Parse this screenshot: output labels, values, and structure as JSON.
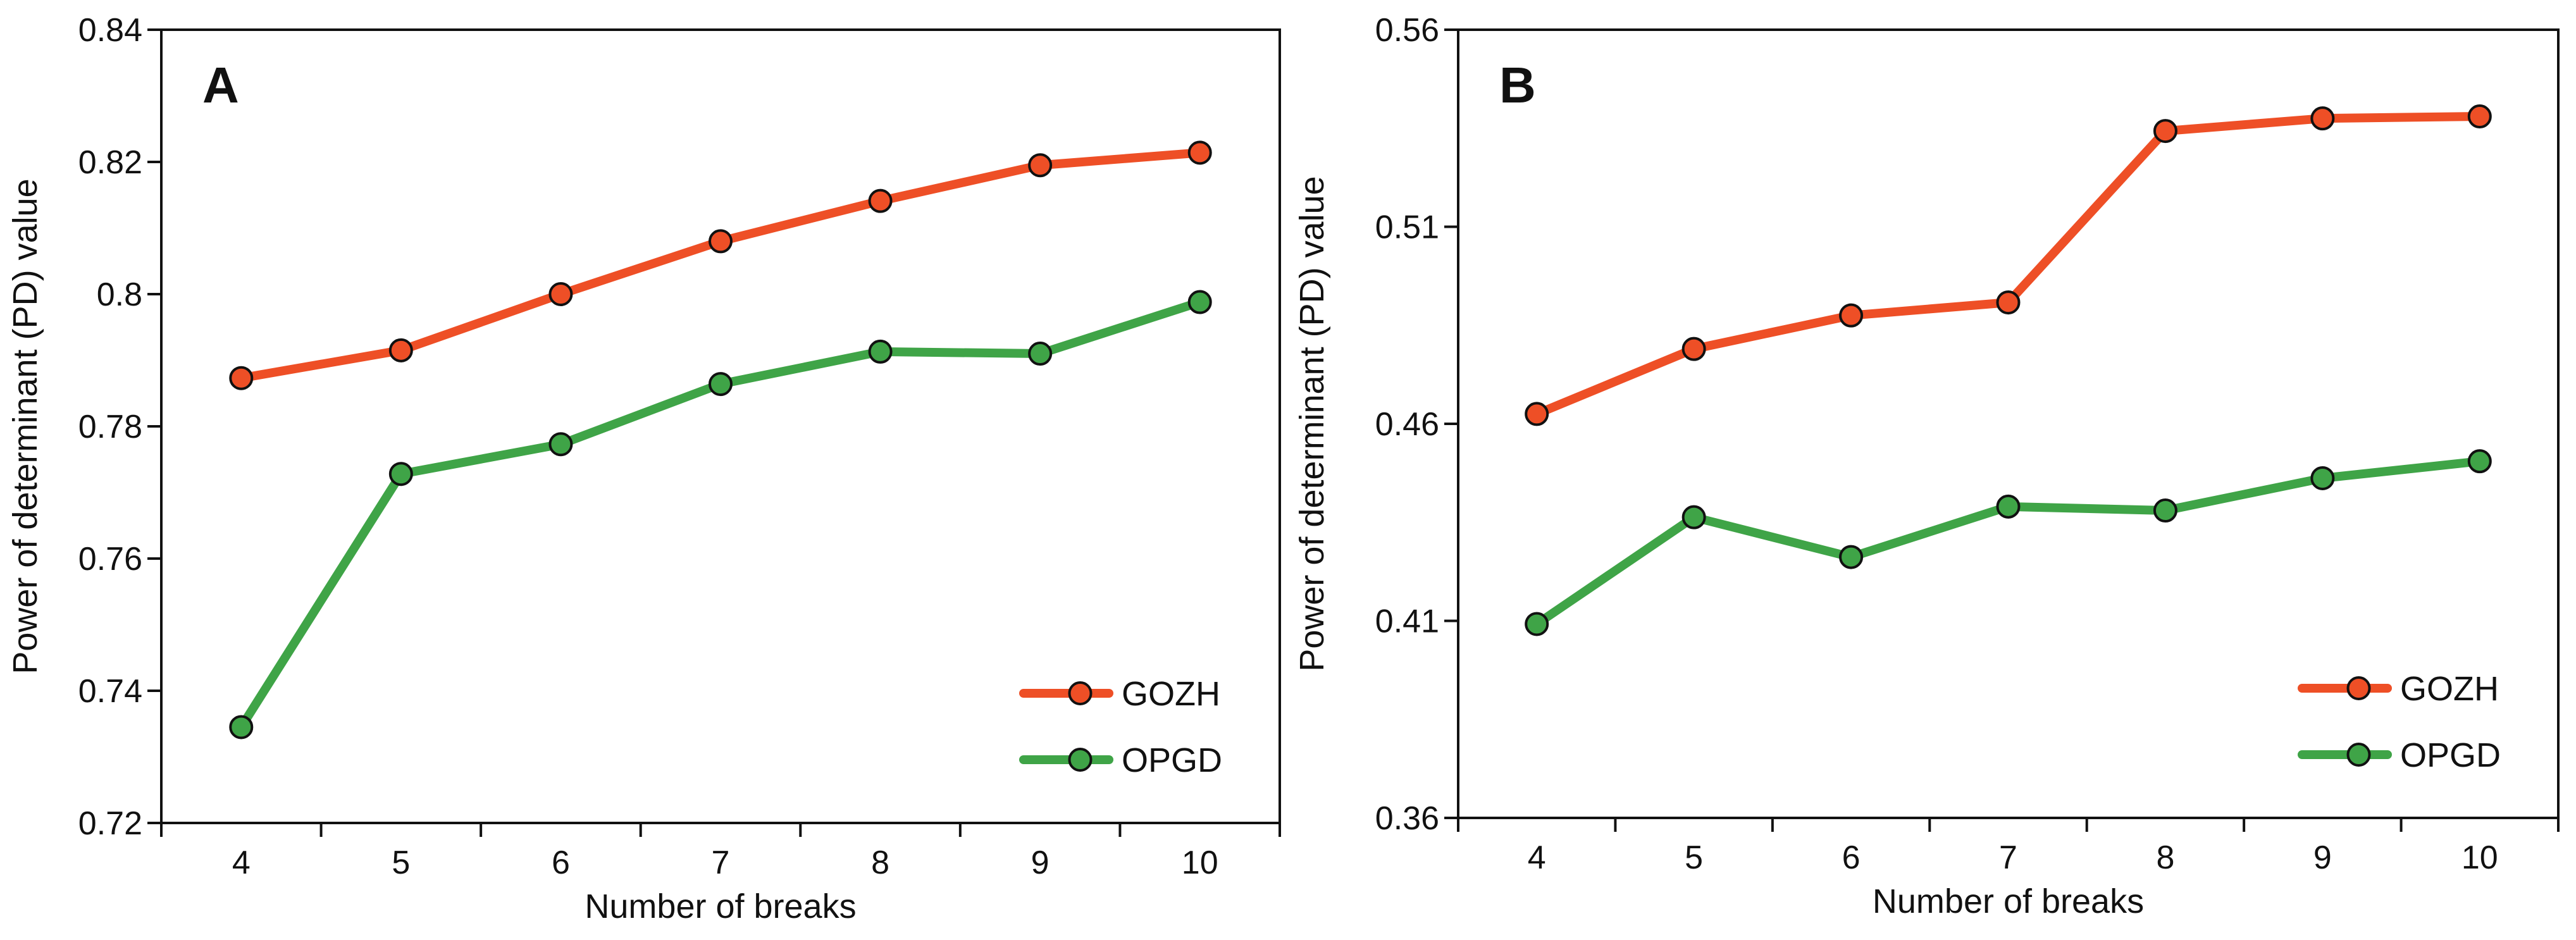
{
  "chart_data": [
    {
      "type": "line",
      "panel_label": "A",
      "x": [
        4,
        5,
        6,
        7,
        8,
        9,
        10
      ],
      "series": [
        {
          "name": "GOZH",
          "color": "#ee4f26",
          "values": [
            0.7873,
            0.7915,
            0.8,
            0.808,
            0.8141,
            0.8195,
            0.8214
          ]
        },
        {
          "name": "OPGD",
          "color": "#3fa447",
          "values": [
            0.7345,
            0.7728,
            0.7773,
            0.7864,
            0.7913,
            0.791,
            0.7988
          ]
        }
      ],
      "xlabel": "Number of breaks",
      "ylabel": "Power of determinant (PD) value",
      "xlim": [
        3.5,
        10.5
      ],
      "ylim": [
        0.72,
        0.84
      ],
      "x_ticks": [
        "4",
        "5",
        "6",
        "7",
        "8",
        "9",
        "10"
      ],
      "y_ticks": [
        "0.72",
        "0.74",
        "0.76",
        "0.78",
        "0.8",
        "0.82",
        "0.84"
      ],
      "grid": false,
      "legend_position": "bottom-right"
    },
    {
      "type": "line",
      "panel_label": "B",
      "x": [
        4,
        5,
        6,
        7,
        8,
        9,
        10
      ],
      "series": [
        {
          "name": "GOZH",
          "color": "#ee4f26",
          "values": [
            0.4625,
            0.479,
            0.4875,
            0.4908,
            0.5343,
            0.5375,
            0.538
          ]
        },
        {
          "name": "OPGD",
          "color": "#3fa447",
          "values": [
            0.4092,
            0.4363,
            0.4262,
            0.439,
            0.438,
            0.4462,
            0.4505
          ]
        }
      ],
      "xlabel": "Number of breaks",
      "ylabel": "Power of determinant (PD) value",
      "xlim": [
        3.5,
        10.5
      ],
      "ylim": [
        0.36,
        0.56
      ],
      "x_ticks": [
        "4",
        "5",
        "6",
        "7",
        "8",
        "9",
        "10"
      ],
      "y_ticks": [
        "0.36",
        "0.41",
        "0.46",
        "0.51",
        "0.56"
      ],
      "grid": false,
      "legend_position": "bottom-right"
    }
  ]
}
